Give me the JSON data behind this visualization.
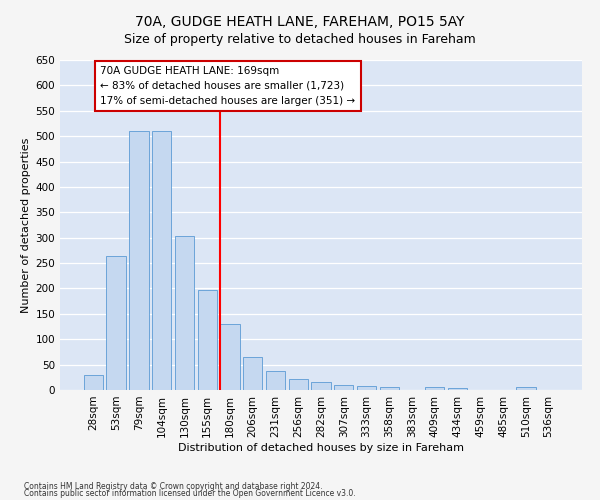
{
  "title": "70A, GUDGE HEATH LANE, FAREHAM, PO15 5AY",
  "subtitle": "Size of property relative to detached houses in Fareham",
  "xlabel": "Distribution of detached houses by size in Fareham",
  "ylabel": "Number of detached properties",
  "footnote1": "Contains HM Land Registry data © Crown copyright and database right 2024.",
  "footnote2": "Contains public sector information licensed under the Open Government Licence v3.0.",
  "categories": [
    "28sqm",
    "53sqm",
    "79sqm",
    "104sqm",
    "130sqm",
    "155sqm",
    "180sqm",
    "206sqm",
    "231sqm",
    "256sqm",
    "282sqm",
    "307sqm",
    "333sqm",
    "358sqm",
    "383sqm",
    "409sqm",
    "434sqm",
    "459sqm",
    "485sqm",
    "510sqm",
    "536sqm"
  ],
  "values": [
    30,
    263,
    510,
    510,
    303,
    197,
    130,
    65,
    37,
    22,
    15,
    10,
    7,
    5,
    0,
    5,
    3,
    0,
    0,
    5,
    0
  ],
  "bar_color": "#c5d8f0",
  "bar_edge_color": "#5b9bd5",
  "background_color": "#dce6f5",
  "grid_color": "#ffffff",
  "annotation_line1": "70A GUDGE HEATH LANE: 169sqm",
  "annotation_line2": "← 83% of detached houses are smaller (1,723)",
  "annotation_line3": "17% of semi-detached houses are larger (351) →",
  "annotation_box_color": "#ffffff",
  "annotation_box_edge": "#cc0000",
  "fig_bg": "#f5f5f5",
  "ylim": [
    0,
    650
  ],
  "yticks": [
    0,
    50,
    100,
    150,
    200,
    250,
    300,
    350,
    400,
    450,
    500,
    550,
    600,
    650
  ],
  "title_fontsize": 10,
  "subtitle_fontsize": 9,
  "axis_label_fontsize": 8,
  "tick_fontsize": 7.5,
  "annotation_fontsize": 7.5,
  "footnote_fontsize": 5.5
}
